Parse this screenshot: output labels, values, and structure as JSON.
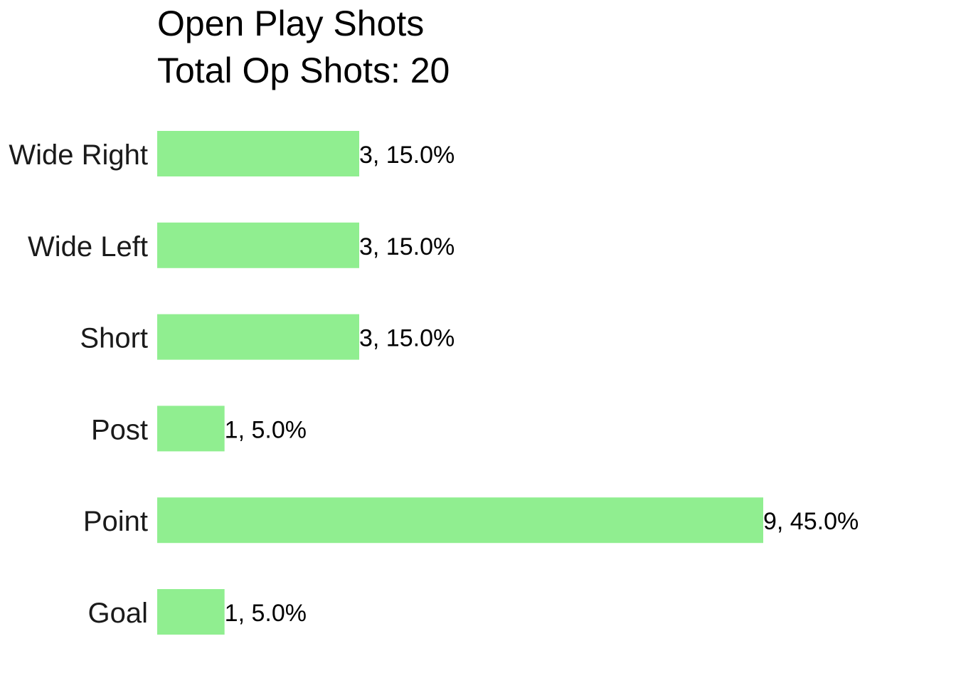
{
  "chart_data": {
    "type": "bar",
    "orientation": "horizontal",
    "title": "Open Play Shots",
    "subtitle": "Total Op Shots: 20",
    "xlabel": "",
    "ylabel": "",
    "categories": [
      "Wide Right",
      "Wide Left",
      "Short",
      "Post",
      "Point",
      "Goal"
    ],
    "values": [
      3,
      3,
      3,
      1,
      9,
      1
    ],
    "data_labels": [
      "3, 15.0%",
      "3, 15.0%",
      "3, 15.0%",
      "1, 5.0%",
      "9, 45.0%",
      "1, 5.0%"
    ],
    "xlim": [
      0,
      9
    ],
    "grid": false,
    "bar_color": "#90EE90",
    "text_color": "#000000"
  }
}
